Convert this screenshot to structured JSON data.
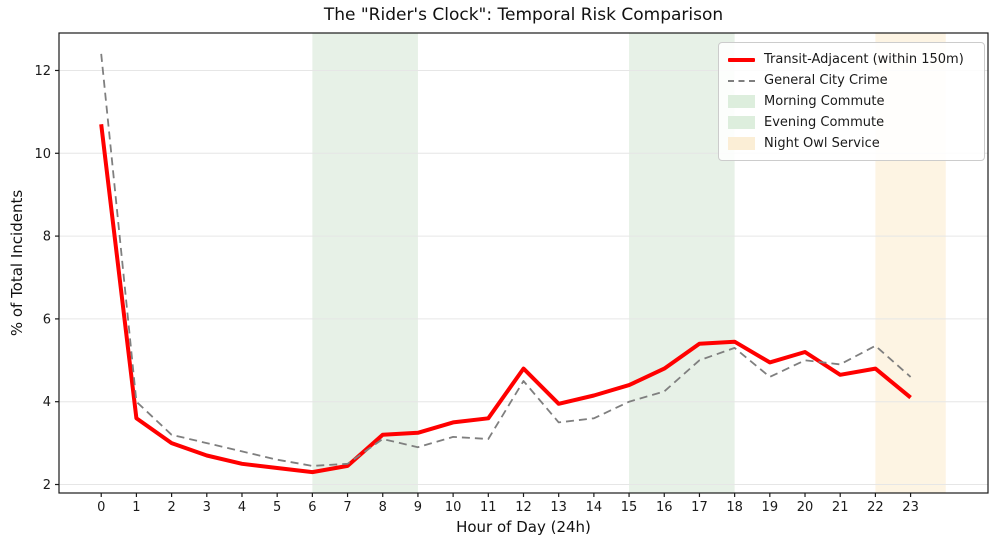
{
  "chart_data": {
    "type": "line",
    "title": "The \"Rider's Clock\": Temporal Risk Comparison",
    "xlabel": "Hour of Day (24h)",
    "ylabel": "% of Total Incidents",
    "x": [
      0,
      1,
      2,
      3,
      4,
      5,
      6,
      7,
      8,
      9,
      10,
      11,
      12,
      13,
      14,
      15,
      16,
      17,
      18,
      19,
      20,
      21,
      22,
      23
    ],
    "series": [
      {
        "name": "Transit-Adjacent (within 150m)",
        "color": "#ff0000",
        "style": "solid",
        "width": 4,
        "values": [
          10.7,
          3.6,
          3.0,
          2.7,
          2.5,
          2.4,
          2.3,
          2.45,
          3.2,
          3.25,
          3.5,
          3.6,
          4.8,
          3.95,
          4.15,
          4.4,
          4.8,
          5.4,
          5.45,
          4.95,
          5.2,
          4.65,
          4.8,
          4.1
        ]
      },
      {
        "name": "General City Crime",
        "color": "#7f7f7f",
        "style": "dashed",
        "width": 1.8,
        "values": [
          12.4,
          4.0,
          3.2,
          3.0,
          2.8,
          2.6,
          2.45,
          2.5,
          3.1,
          2.9,
          3.15,
          3.1,
          4.5,
          3.5,
          3.6,
          4.0,
          4.25,
          5.0,
          5.3,
          4.6,
          5.0,
          4.9,
          5.35,
          4.6
        ]
      }
    ],
    "spans": [
      {
        "name": "Morning Commute",
        "from": 6,
        "to": 9,
        "color": "#e7f1e7",
        "legend_color": "#ddeedd"
      },
      {
        "name": "Evening Commute",
        "from": 15,
        "to": 18,
        "color": "#e7f1e7",
        "legend_color": "#ddeedd"
      },
      {
        "name": "Night Owl Service",
        "from": 22,
        "to": 24,
        "color": "#fdf4e3",
        "legend_color": "#fbeed6"
      }
    ],
    "xticks": [
      0,
      1,
      2,
      3,
      4,
      5,
      6,
      7,
      8,
      9,
      10,
      11,
      12,
      13,
      14,
      15,
      16,
      17,
      18,
      19,
      20,
      21,
      22,
      23
    ],
    "yticks": [
      2,
      4,
      6,
      8,
      10,
      12
    ],
    "xlim": [
      -1.2,
      25.2
    ],
    "ylim": [
      1.795,
      12.905
    ],
    "grid": "horizontal",
    "grid_color": "#e6e6e6",
    "spine_color": "#1a1a1a",
    "legend_position": "top-right"
  }
}
